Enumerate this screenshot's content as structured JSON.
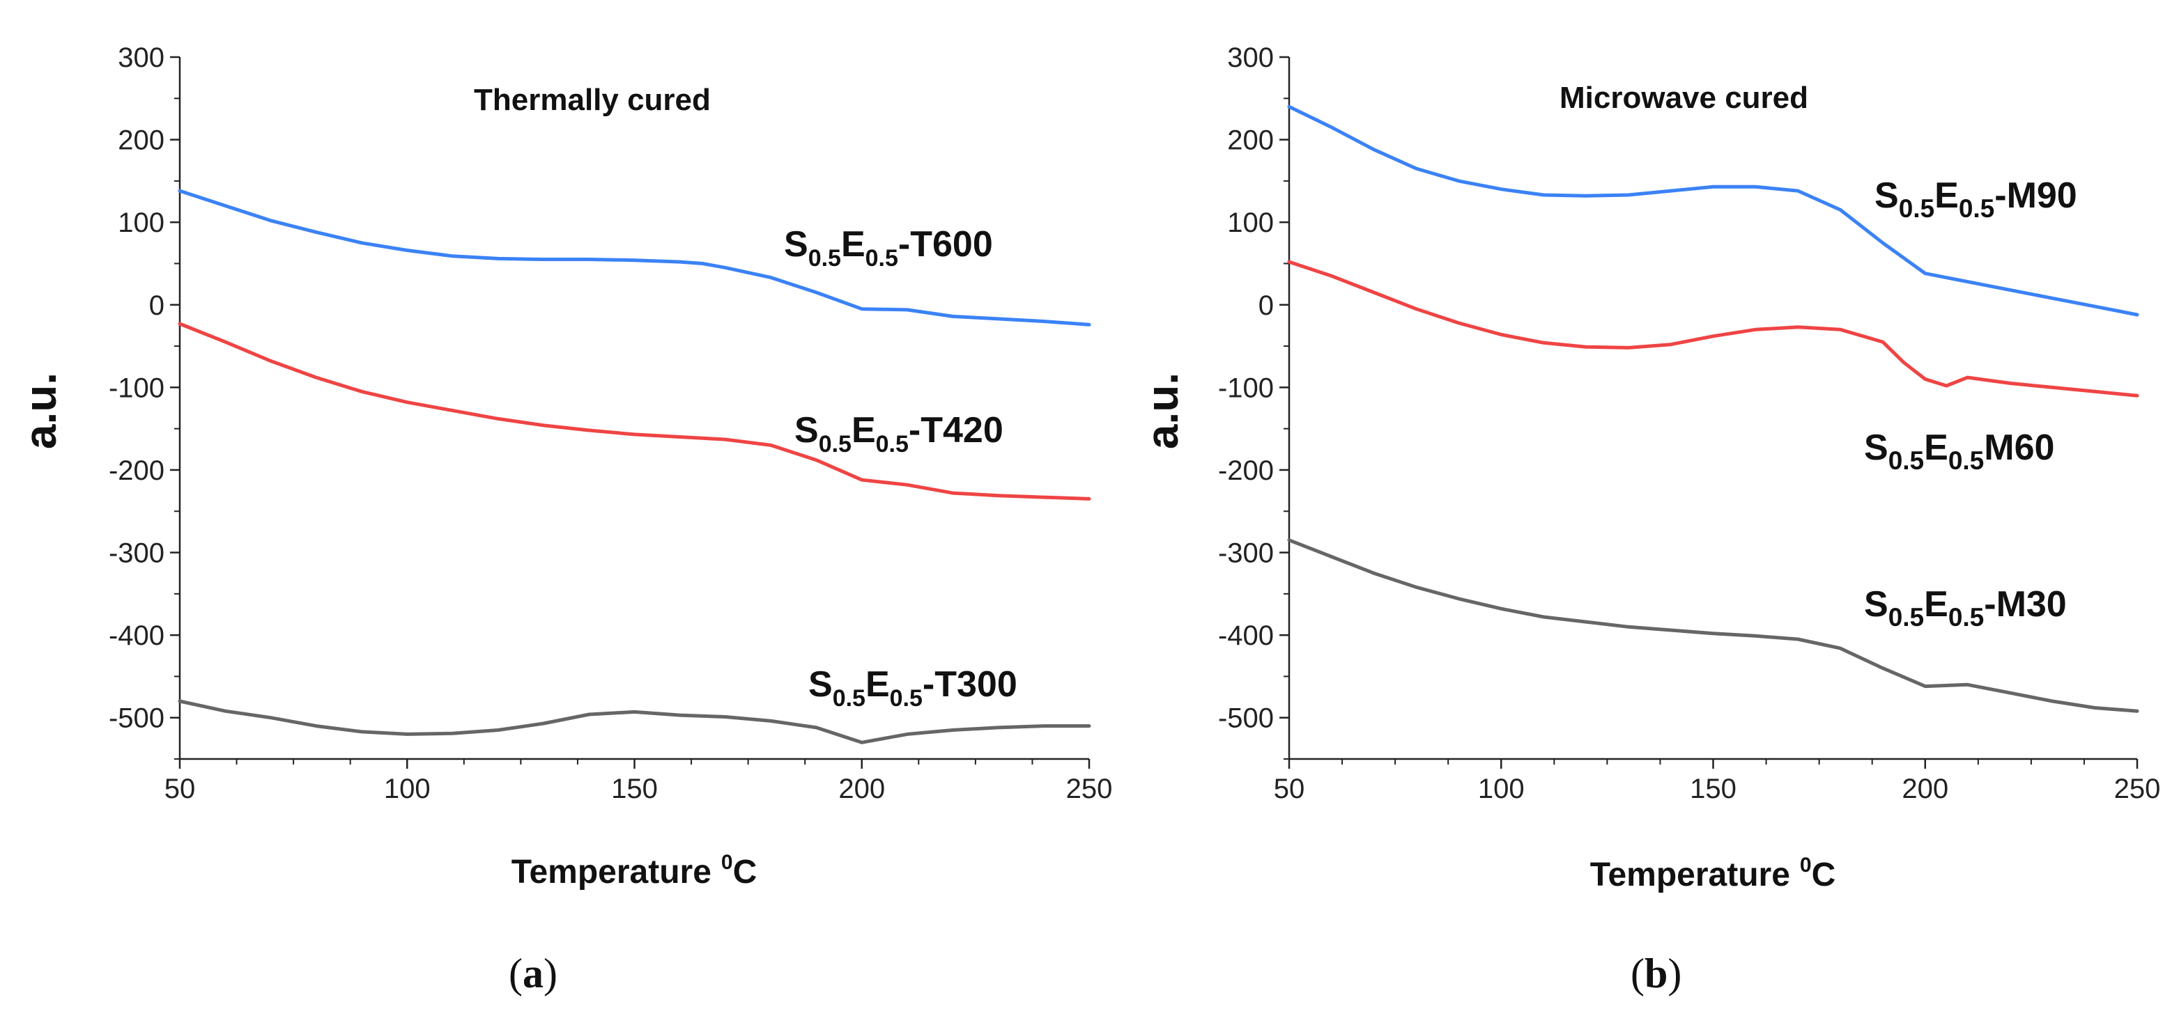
{
  "chart_data": [
    {
      "type": "line",
      "panel_caption": "a",
      "title": "Thermally cured",
      "xlabel": "Temperature",
      "xlabel_sup": "0",
      "xlabel_unit": "C",
      "ylabel": "a.u.",
      "xlim": [
        50,
        250
      ],
      "ylim": [
        -550,
        300
      ],
      "xticks": [
        50,
        100,
        150,
        200,
        250
      ],
      "yticks": [
        300,
        200,
        100,
        0,
        -100,
        -200,
        -300,
        -400,
        -500
      ],
      "series": [
        {
          "name": "S0.5E0.5-T600",
          "label": {
            "s": "S",
            "s_sub": "0.5",
            "e": "E",
            "e_sub": "0.5",
            "suffix": "-T600"
          },
          "color": "#3b82f6",
          "x": [
            50,
            60,
            70,
            80,
            90,
            100,
            110,
            120,
            130,
            140,
            150,
            160,
            165,
            170,
            180,
            190,
            200,
            210,
            220,
            230,
            240,
            250
          ],
          "y": [
            138,
            120,
            102,
            88,
            75,
            66,
            59,
            56,
            55,
            55,
            54,
            52,
            50,
            45,
            33,
            15,
            -5,
            -6,
            -14,
            -17,
            -20,
            -24
          ]
        },
        {
          "name": "S0.5E0.5-T420",
          "label": {
            "s": "S",
            "s_sub": "0.5",
            "e": "E",
            "e_sub": "0.5",
            "suffix": "-T420"
          },
          "color": "#ef4444",
          "x": [
            50,
            60,
            70,
            80,
            90,
            100,
            110,
            120,
            130,
            140,
            150,
            160,
            170,
            180,
            190,
            200,
            210,
            220,
            230,
            240,
            250
          ],
          "y": [
            -23,
            -45,
            -68,
            -88,
            -105,
            -118,
            -128,
            -138,
            -146,
            -152,
            -157,
            -160,
            -163,
            -170,
            -188,
            -212,
            -218,
            -228,
            -231,
            -233,
            -235
          ]
        },
        {
          "name": "S0.5E0.5-T300",
          "label": {
            "s": "S",
            "s_sub": "0.5",
            "e": "E",
            "e_sub": "0.5",
            "suffix": "-T300"
          },
          "color": "#666666",
          "x": [
            50,
            60,
            70,
            80,
            90,
            100,
            110,
            120,
            130,
            140,
            150,
            160,
            170,
            180,
            190,
            200,
            210,
            220,
            230,
            240,
            250
          ],
          "y": [
            -480,
            -492,
            -500,
            -510,
            -517,
            -520,
            -519,
            -515,
            -507,
            -496,
            -493,
            -497,
            -499,
            -504,
            -512,
            -530,
            -520,
            -515,
            -512,
            -510,
            -510
          ]
        }
      ]
    },
    {
      "type": "line",
      "panel_caption": "b",
      "title": "Microwave cured",
      "xlabel": "Temperature",
      "xlabel_sup": "0",
      "xlabel_unit": "C",
      "ylabel": "a.u.",
      "xlim": [
        50,
        250
      ],
      "ylim": [
        -550,
        300
      ],
      "xticks": [
        50,
        100,
        150,
        200,
        250
      ],
      "yticks": [
        300,
        200,
        100,
        0,
        -100,
        -200,
        -300,
        -400,
        -500
      ],
      "series": [
        {
          "name": "S0.5E0.5-M90",
          "label": {
            "s": "S",
            "s_sub": "0.5",
            "e": "E",
            "e_sub": "0.5",
            "suffix": "-M90"
          },
          "color": "#3b82f6",
          "x": [
            50,
            60,
            70,
            80,
            90,
            100,
            110,
            120,
            130,
            140,
            150,
            160,
            170,
            180,
            190,
            200,
            210,
            220,
            230,
            240,
            250
          ],
          "y": [
            240,
            215,
            188,
            165,
            150,
            140,
            133,
            132,
            133,
            138,
            143,
            143,
            138,
            115,
            75,
            38,
            28,
            18,
            8,
            -2,
            -12
          ]
        },
        {
          "name": "S0.5E0.5-M60",
          "label": {
            "s": "S",
            "s_sub": "0.5",
            "e": "E",
            "e_sub": "0.5",
            "suffix": "M60"
          },
          "color": "#ef4444",
          "x": [
            50,
            60,
            70,
            80,
            90,
            100,
            110,
            120,
            130,
            140,
            150,
            160,
            170,
            180,
            190,
            195,
            200,
            205,
            210,
            220,
            230,
            240,
            250
          ],
          "y": [
            52,
            35,
            15,
            -5,
            -22,
            -36,
            -46,
            -51,
            -52,
            -48,
            -38,
            -30,
            -27,
            -30,
            -45,
            -70,
            -90,
            -98,
            -88,
            -95,
            -100,
            -105,
            -110
          ]
        },
        {
          "name": "S0.5E0.5-M30",
          "label": {
            "s": "S",
            "s_sub": "0.5",
            "e": "E",
            "e_sub": "0.5",
            "suffix": "-M30"
          },
          "color": "#666666",
          "x": [
            50,
            60,
            70,
            80,
            90,
            100,
            110,
            120,
            130,
            140,
            150,
            160,
            170,
            180,
            190,
            200,
            210,
            220,
            230,
            240,
            250
          ],
          "y": [
            -285,
            -305,
            -325,
            -342,
            -356,
            -368,
            -378,
            -384,
            -390,
            -394,
            -398,
            -401,
            -405,
            -416,
            -440,
            -462,
            -460,
            -470,
            -480,
            -488,
            -492
          ]
        }
      ]
    }
  ]
}
